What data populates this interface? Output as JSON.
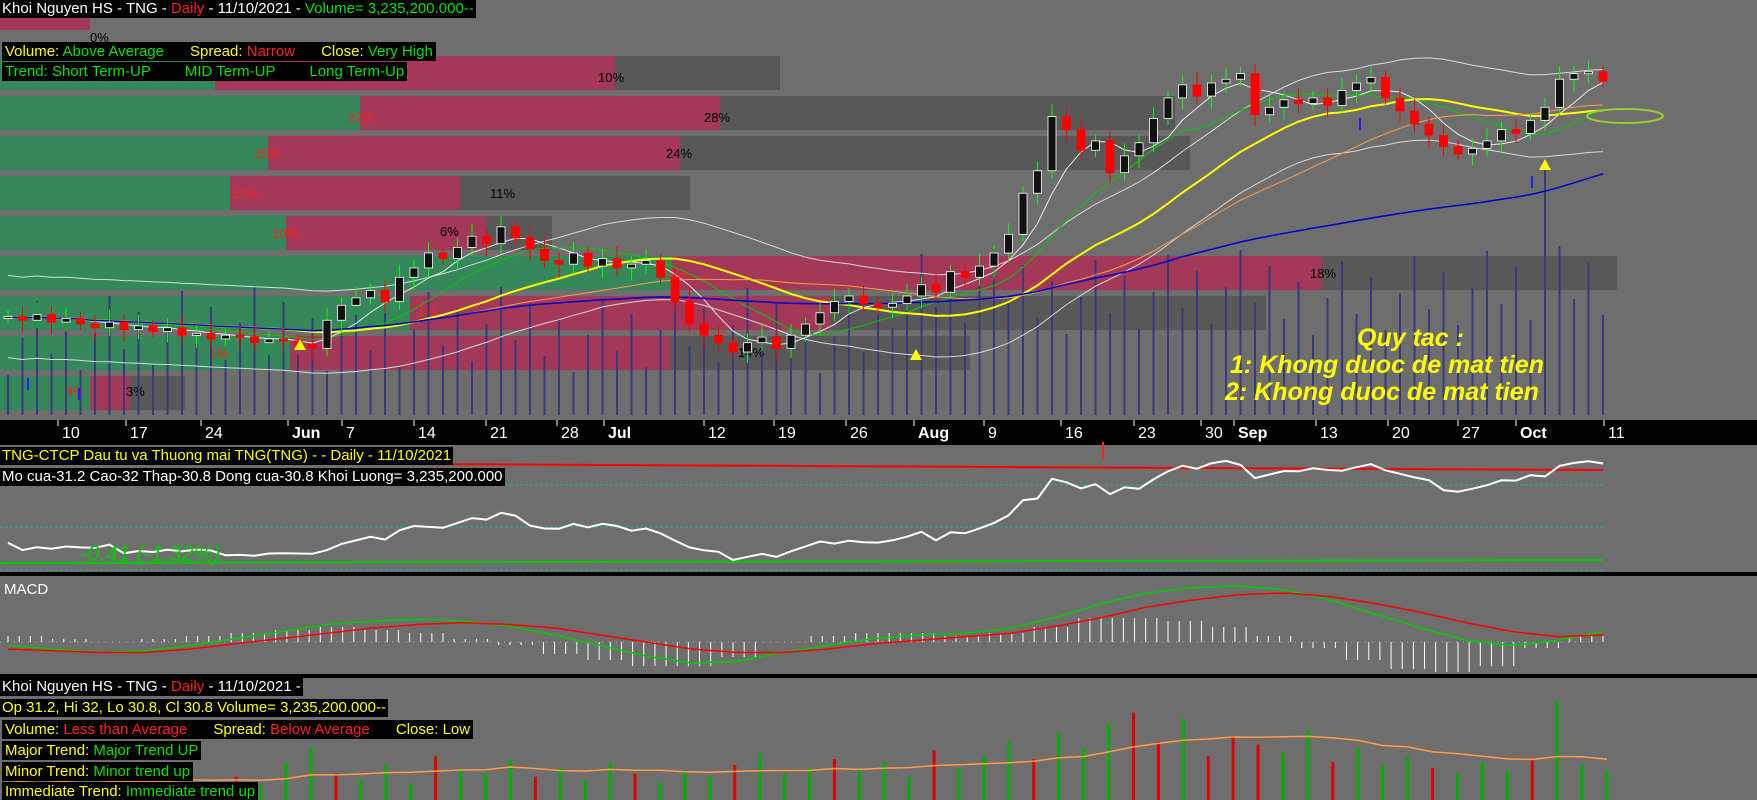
{
  "colors": {
    "panel_bg": "#6e6e6e",
    "up_candle": "#111111",
    "down_candle": "#ff0000",
    "profile_green": "#2e8b57",
    "profile_red": "#a83256",
    "profile_gray": "#555555",
    "ma_yellow": "#ffff00",
    "ma_blue": "#0000cc",
    "ma_orange": "#ff9b4a",
    "signal_red": "#ff0000",
    "macd_green": "#00cc00"
  },
  "main_panel": {
    "header": {
      "title": "Khoi Nguyen HS - TNG - ",
      "period": "Daily",
      "date": "  - 11/10/2021 - ",
      "volume": "Volume= 3,235,200.000--"
    },
    "info": {
      "volume_label": "Volume:",
      "volume_value": "Above Average",
      "spread_label": "Spread:",
      "spread_value": "Narrow",
      "close_label": "Close:",
      "close_value": "Very High",
      "trend_label": "Trend:",
      "short_term": "Short Term-UP",
      "mid_term": "MID Term-UP",
      "long_term": "Long Term-Up"
    },
    "rules_text": [
      "Quy tac :",
      "1: Khong duoc de mat tien",
      "2: Khong duoc de mat tien"
    ],
    "x_axis_labels": [
      "10",
      "17",
      "24",
      "Jun",
      "7",
      "14",
      "21",
      "28",
      "Jul",
      "12",
      "19",
      "26",
      "Aug",
      "9",
      "16",
      "23",
      "30",
      "Sep",
      "13",
      "20",
      "27",
      "Oct",
      "11"
    ],
    "profile_percent_labels": [
      "0%",
      "10%",
      "22%",
      "28%",
      "25%",
      "24%",
      "17%",
      "11%",
      "10%",
      "6%",
      "40%",
      "18%",
      "1%",
      "1%",
      "14%",
      "4%",
      "3%"
    ]
  },
  "chart_data": [
    {
      "type": "candlestick",
      "title": "Khoi Nguyen HS - TNG - Daily - 11/10/2021",
      "x_labels": [
        "10",
        "17",
        "24",
        "Jun",
        "7",
        "14",
        "21",
        "28",
        "Jul",
        "12",
        "19",
        "26",
        "Aug",
        "9",
        "16",
        "23",
        "30",
        "Sep",
        "13",
        "20",
        "27",
        "Oct",
        "11"
      ],
      "close_series": [
        18.2,
        18.0,
        18.3,
        17.9,
        18.1,
        17.8,
        17.6,
        17.9,
        17.5,
        17.7,
        17.4,
        17.6,
        17.2,
        17.3,
        17.0,
        17.2,
        17.1,
        16.8,
        17.0,
        16.9,
        16.7,
        16.5,
        18.0,
        18.8,
        19.2,
        19.6,
        19.0,
        20.3,
        20.8,
        21.6,
        21.3,
        21.9,
        22.5,
        22.1,
        23.0,
        22.4,
        21.8,
        21.2,
        21.0,
        21.6,
        20.9,
        21.3,
        20.8,
        21.0,
        21.2,
        20.3,
        19.0,
        17.8,
        17.2,
        16.8,
        16.3,
        16.8,
        17.1,
        16.5,
        17.2,
        17.8,
        18.4,
        19.0,
        19.3,
        18.9,
        18.7,
        18.9,
        19.3,
        19.9,
        19.5,
        20.6,
        20.3,
        20.9,
        21.6,
        22.6,
        24.8,
        26.0,
        28.9,
        28.2,
        27.1,
        27.6,
        25.9,
        26.8,
        27.5,
        28.8,
        29.9,
        30.6,
        30.0,
        30.7,
        30.9,
        31.2,
        29.0,
        29.4,
        29.8,
        29.6,
        29.9,
        29.5,
        30.3,
        30.7,
        31.0,
        29.9,
        29.2,
        28.5,
        27.9,
        27.3,
        26.9,
        27.2,
        27.6,
        28.2,
        28.0,
        28.7,
        29.4,
        30.9,
        31.2,
        31.3,
        30.8
      ],
      "volume": 3235200.0
    },
    {
      "type": "line",
      "title": "TNG-CTCP Dau tu va Thuong mai TNG(TNG) -  - Daily  - 11/10/2021",
      "open": 31.2,
      "high": 32,
      "low": 30.8,
      "close": 30.8,
      "volume": 3235200.0,
      "annotation": "-0.41 (-1.32%)"
    },
    {
      "type": "line",
      "title": "MACD",
      "series": [
        {
          "values": [
            -0.1,
            -0.2,
            -0.3,
            -0.25,
            -0.1,
            0.1,
            0.3,
            0.5,
            0.6,
            0.65,
            0.6,
            0.45,
            0.2,
            -0.1,
            -0.4,
            -0.6,
            -0.55,
            -0.3,
            -0.1,
            0.1,
            0.2,
            0.25,
            0.4,
            0.7,
            1.1,
            1.4,
            1.55,
            1.6,
            1.5,
            1.2,
            0.8,
            0.4,
            0.05,
            -0.1,
            0.05,
            0.3
          ]
        },
        {
          "values": [
            -0.2,
            -0.25,
            -0.3,
            -0.3,
            -0.2,
            -0.05,
            0.1,
            0.25,
            0.4,
            0.5,
            0.55,
            0.5,
            0.4,
            0.2,
            0.0,
            -0.2,
            -0.3,
            -0.3,
            -0.2,
            -0.05,
            0.05,
            0.15,
            0.25,
            0.45,
            0.7,
            1.0,
            1.2,
            1.35,
            1.4,
            1.3,
            1.1,
            0.85,
            0.55,
            0.3,
            0.15,
            0.2
          ]
        }
      ]
    },
    {
      "type": "bar",
      "title": "Khoi Nguyen HS - TNG - Daily - 11/10/2021 -",
      "values": [
        0.6,
        0.8,
        0.5,
        0.9,
        0.4,
        0.7,
        0.5,
        1.1,
        0.6,
        0.8,
        0.5,
        1.3,
        1.8,
        0.9,
        0.7,
        1.2,
        0.6,
        1.5,
        1.0,
        0.9,
        1.4,
        0.8,
        1.1,
        0.7,
        1.3,
        0.9,
        0.6,
        1.0,
        0.8,
        1.2,
        1.6,
        0.9,
        1.1,
        1.4,
        1.0,
        1.3,
        0.8,
        1.7,
        1.1,
        1.5,
        2.0,
        1.4,
        2.3,
        1.8,
        2.6,
        3.0,
        2.0,
        2.8,
        1.5,
        2.2,
        1.9,
        1.6,
        2.4,
        1.3,
        1.8,
        1.2,
        1.5,
        1.1,
        0.9,
        1.3,
        1.0,
        1.4,
        3.4,
        1.2,
        1.0
      ]
    }
  ],
  "macd_panel": {
    "label": "MACD"
  },
  "indicator_panel": {
    "title": "TNG-CTCP Dau tu va Thuong mai TNG(TNG) -  - Daily  - 11/10/2021",
    "ohlc": "Mo cua-31.2  Cao-32  Thap-30.8  Dong cua-30.8  Khoi Luong= 3,235,200.000",
    "change": "-0.41 (-1.32%)"
  },
  "volume_panel": {
    "header_title": "Khoi Nguyen HS - TNG - ",
    "header_period": "Daily",
    "header_date": "  - 11/10/2021 - ",
    "ohlc": "Op 31.2, Hi 32, Lo 30.8, Cl 30.8  Volume= 3,235,200.000--",
    "volume_label": "Volume:",
    "volume_value": "Less than Average",
    "spread_label": "Spread:",
    "spread_value": "Below Average",
    "close_label": "Close:",
    "close_value": "Low",
    "major_label": "Major Trend:",
    "major_value": "Major Trend UP",
    "minor_label": "Minor Trend:",
    "minor_value": "Minor trend up",
    "immediate_label": "Immediate Trend:",
    "immediate_value": "Immediate trend up"
  }
}
